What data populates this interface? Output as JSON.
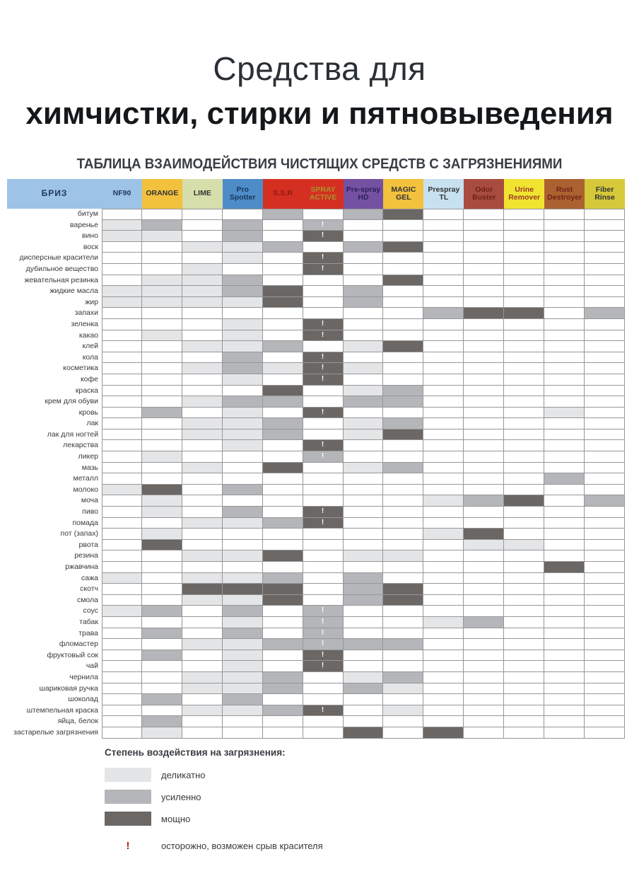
{
  "header": {
    "title_line1": "Средства для",
    "title_line2": "химчистки, стирки и пятновыведения",
    "subtitle": "ТАБЛИЦА ВЗАИМОДЕЙСТВИЯ ЧИСТЯЩИХ СРЕДСТВ С ЗАГРЯЗНЕНИЯМИ"
  },
  "table": {
    "corner": {
      "name": "БРИЗ",
      "bg": "#9DC3E6",
      "fg": "#1F3864"
    },
    "shade_colors": {
      "0": "#FFFFFF",
      "1": "#E4E5E7",
      "2": "#B4B6B9",
      "3": "#6A6765"
    },
    "warning_mark": "!",
    "products": [
      {
        "name": "NF90",
        "bg": "#9DC3E6",
        "fg": "#1F3864"
      },
      {
        "name": "ORANGE",
        "bg": "#F2C13D",
        "fg": "#333333"
      },
      {
        "name": "LIME",
        "bg": "#D6DEAC",
        "fg": "#333333"
      },
      {
        "name": "Pro Spotter",
        "bg": "#4E8CC8",
        "fg": "#17365D"
      },
      {
        "name": "S.S.R",
        "bg": "#D52F21",
        "fg": "#8A1A10"
      },
      {
        "name": "SPRAY ACTIVE",
        "bg": "#D52F21",
        "fg": "#A8922F"
      },
      {
        "name": "Pre-spray HD",
        "bg": "#7451A1",
        "fg": "#2B2159"
      },
      {
        "name": "MAGIC GEL",
        "bg": "#F2C13D",
        "fg": "#333333"
      },
      {
        "name": "Prespray TL",
        "bg": "#C8E1F1",
        "fg": "#333333"
      },
      {
        "name": "Odor Buster",
        "bg": "#A94C40",
        "fg": "#701F16"
      },
      {
        "name": "Urine Remover",
        "bg": "#F0E431",
        "fg": "#9C3A28"
      },
      {
        "name": "Rust Destroyer",
        "bg": "#AC6230",
        "fg": "#6E2318"
      },
      {
        "name": "Fiber Rinse",
        "bg": "#D5C93B",
        "fg": "#333333"
      }
    ],
    "rows": [
      {
        "label": "битум",
        "cells": [
          "0",
          "0",
          "0",
          "0",
          "2",
          "0",
          "2",
          "3",
          "0",
          "0",
          "0",
          "0",
          "0"
        ]
      },
      {
        "label": "варенье",
        "cells": [
          "1",
          "2",
          "0",
          "2",
          "0",
          "2!",
          "0",
          "0",
          "0",
          "0",
          "0",
          "0",
          "0"
        ]
      },
      {
        "label": "вино",
        "cells": [
          "1",
          "1",
          "0",
          "2",
          "0",
          "3!",
          "0",
          "0",
          "0",
          "0",
          "0",
          "0",
          "0"
        ]
      },
      {
        "label": "воск",
        "cells": [
          "0",
          "0",
          "1",
          "1",
          "2",
          "0",
          "2",
          "3",
          "0",
          "0",
          "0",
          "0",
          "0"
        ]
      },
      {
        "label": "дисперсные красители",
        "cells": [
          "0",
          "0",
          "0",
          "1",
          "0",
          "3!",
          "0",
          "0",
          "0",
          "0",
          "0",
          "0",
          "0"
        ]
      },
      {
        "label": "дубильное вещество",
        "cells": [
          "0",
          "0",
          "1",
          "0",
          "0",
          "3!",
          "0",
          "0",
          "0",
          "0",
          "0",
          "0",
          "0"
        ]
      },
      {
        "label": "жевательная резинка",
        "cells": [
          "0",
          "1",
          "1",
          "2",
          "0",
          "0",
          "0",
          "3",
          "0",
          "0",
          "0",
          "0",
          "0"
        ]
      },
      {
        "label": "жидкие масла",
        "cells": [
          "1",
          "1",
          "1",
          "2",
          "3",
          "0",
          "2",
          "0",
          "0",
          "0",
          "0",
          "0",
          "0"
        ]
      },
      {
        "label": "жир",
        "cells": [
          "1",
          "1",
          "1",
          "1",
          "3",
          "0",
          "2",
          "0",
          "0",
          "0",
          "0",
          "0",
          "0"
        ]
      },
      {
        "label": "запахи",
        "cells": [
          "0",
          "0",
          "0",
          "0",
          "0",
          "0",
          "0",
          "0",
          "2",
          "3",
          "3",
          "0",
          "2"
        ]
      },
      {
        "label": "зеленка",
        "cells": [
          "0",
          "0",
          "0",
          "1",
          "0",
          "3!",
          "0",
          "0",
          "0",
          "0",
          "0",
          "0",
          "0"
        ]
      },
      {
        "label": "какао",
        "cells": [
          "0",
          "1",
          "0",
          "1",
          "0",
          "3!",
          "0",
          "0",
          "0",
          "0",
          "0",
          "0",
          "0"
        ]
      },
      {
        "label": "клей",
        "cells": [
          "0",
          "0",
          "1",
          "1",
          "2",
          "0",
          "1",
          "3",
          "0",
          "0",
          "0",
          "0",
          "0"
        ]
      },
      {
        "label": "кола",
        "cells": [
          "0",
          "0",
          "0",
          "2",
          "0",
          "3!",
          "0",
          "0",
          "0",
          "0",
          "0",
          "0",
          "0"
        ]
      },
      {
        "label": "косметика",
        "cells": [
          "0",
          "0",
          "1",
          "2",
          "1",
          "3!",
          "1",
          "0",
          "0",
          "0",
          "0",
          "0",
          "0"
        ]
      },
      {
        "label": "кофе",
        "cells": [
          "0",
          "0",
          "0",
          "1",
          "0",
          "3!",
          "0",
          "0",
          "0",
          "0",
          "0",
          "0",
          "0"
        ]
      },
      {
        "label": "краска",
        "cells": [
          "0",
          "0",
          "0",
          "0",
          "3",
          "0",
          "1",
          "2",
          "0",
          "0",
          "0",
          "0",
          "0"
        ]
      },
      {
        "label": "крем для обуви",
        "cells": [
          "0",
          "0",
          "1",
          "2",
          "2",
          "0",
          "2",
          "2",
          "0",
          "0",
          "0",
          "0",
          "0"
        ]
      },
      {
        "label": "кровь",
        "cells": [
          "0",
          "2",
          "0",
          "1",
          "0",
          "3!",
          "0",
          "0",
          "0",
          "0",
          "0",
          "1",
          "0"
        ]
      },
      {
        "label": "лак",
        "cells": [
          "0",
          "0",
          "1",
          "1",
          "2",
          "0",
          "1",
          "2",
          "0",
          "0",
          "0",
          "0",
          "0"
        ]
      },
      {
        "label": "лак для ногтей",
        "cells": [
          "0",
          "0",
          "1",
          "1",
          "2",
          "0",
          "1",
          "3",
          "0",
          "0",
          "0",
          "0",
          "0"
        ]
      },
      {
        "label": "лекарства",
        "cells": [
          "0",
          "0",
          "0",
          "1",
          "0",
          "3!",
          "0",
          "0",
          "0",
          "0",
          "0",
          "0",
          "0"
        ]
      },
      {
        "label": "ликер",
        "cells": [
          "0",
          "1",
          "0",
          "0",
          "0",
          "2!",
          "0",
          "0",
          "0",
          "0",
          "0",
          "0",
          "0"
        ]
      },
      {
        "label": "мазь",
        "cells": [
          "0",
          "0",
          "1",
          "0",
          "3",
          "0",
          "1",
          "2",
          "0",
          "0",
          "0",
          "0",
          "0"
        ]
      },
      {
        "label": "металл",
        "cells": [
          "0",
          "0",
          "0",
          "0",
          "0",
          "0",
          "0",
          "0",
          "0",
          "0",
          "0",
          "2",
          "0"
        ]
      },
      {
        "label": "молоко",
        "cells": [
          "1",
          "3",
          "0",
          "2",
          "0",
          "0",
          "0",
          "0",
          "0",
          "0",
          "0",
          "0",
          "0"
        ]
      },
      {
        "label": "моча",
        "cells": [
          "0",
          "1",
          "0",
          "0",
          "0",
          "0",
          "0",
          "0",
          "1",
          "2",
          "3",
          "0",
          "2"
        ]
      },
      {
        "label": "пиво",
        "cells": [
          "0",
          "1",
          "0",
          "2",
          "0",
          "3!",
          "0",
          "0",
          "0",
          "0",
          "0",
          "0",
          "0"
        ]
      },
      {
        "label": "помада",
        "cells": [
          "0",
          "0",
          "1",
          "1",
          "2",
          "3!",
          "0",
          "0",
          "0",
          "0",
          "0",
          "0",
          "0"
        ]
      },
      {
        "label": "пот (запах)",
        "cells": [
          "0",
          "1",
          "0",
          "0",
          "0",
          "0",
          "0",
          "0",
          "1",
          "3",
          "0",
          "0",
          "0"
        ]
      },
      {
        "label": "рвота",
        "cells": [
          "0",
          "3",
          "0",
          "0",
          "0",
          "0",
          "0",
          "0",
          "0",
          "1",
          "1",
          "0",
          "0"
        ]
      },
      {
        "label": "резина",
        "cells": [
          "0",
          "0",
          "1",
          "1",
          "3",
          "0",
          "1",
          "1",
          "0",
          "0",
          "0",
          "0",
          "0"
        ]
      },
      {
        "label": "ржавчина",
        "cells": [
          "0",
          "0",
          "0",
          "0",
          "0",
          "0",
          "0",
          "0",
          "0",
          "0",
          "0",
          "3",
          "0"
        ]
      },
      {
        "label": "сажа",
        "cells": [
          "1",
          "0",
          "1",
          "1",
          "2",
          "0",
          "2",
          "0",
          "0",
          "0",
          "0",
          "0",
          "0"
        ]
      },
      {
        "label": "скотч",
        "cells": [
          "0",
          "0",
          "3",
          "3",
          "3",
          "0",
          "2",
          "3",
          "0",
          "0",
          "0",
          "0",
          "0"
        ]
      },
      {
        "label": "смола",
        "cells": [
          "0",
          "0",
          "1",
          "1",
          "3",
          "0",
          "2",
          "3",
          "0",
          "0",
          "0",
          "0",
          "0"
        ]
      },
      {
        "label": "соус",
        "cells": [
          "1",
          "2",
          "0",
          "2",
          "0",
          "2!",
          "0",
          "0",
          "0",
          "0",
          "0",
          "0",
          "0"
        ]
      },
      {
        "label": "табак",
        "cells": [
          "0",
          "0",
          "0",
          "1",
          "0",
          "2!",
          "0",
          "0",
          "1",
          "2",
          "0",
          "0",
          "0"
        ]
      },
      {
        "label": "трава",
        "cells": [
          "0",
          "2",
          "0",
          "2",
          "0",
          "2!",
          "0",
          "0",
          "0",
          "0",
          "0",
          "0",
          "0"
        ]
      },
      {
        "label": "фломастер",
        "cells": [
          "0",
          "0",
          "1",
          "1",
          "2",
          "2!",
          "2",
          "2",
          "0",
          "0",
          "0",
          "0",
          "0"
        ]
      },
      {
        "label": "фруктовый сок",
        "cells": [
          "0",
          "2",
          "0",
          "1",
          "0",
          "3!",
          "0",
          "0",
          "0",
          "0",
          "0",
          "0",
          "0"
        ]
      },
      {
        "label": "чай",
        "cells": [
          "0",
          "0",
          "0",
          "1",
          "0",
          "3!",
          "0",
          "0",
          "0",
          "0",
          "0",
          "0",
          "0"
        ]
      },
      {
        "label": "чернила",
        "cells": [
          "0",
          "0",
          "1",
          "1",
          "2",
          "0",
          "1",
          "2",
          "0",
          "0",
          "0",
          "0",
          "0"
        ]
      },
      {
        "label": "шариковая ручка",
        "cells": [
          "0",
          "0",
          "1",
          "1",
          "2",
          "0",
          "2",
          "1",
          "0",
          "0",
          "0",
          "0",
          "0"
        ]
      },
      {
        "label": "шоколад",
        "cells": [
          "0",
          "2",
          "0",
          "2",
          "0",
          "0",
          "0",
          "0",
          "0",
          "0",
          "0",
          "0",
          "0"
        ]
      },
      {
        "label": "штемпельная краска",
        "cells": [
          "0",
          "0",
          "1",
          "1",
          "2",
          "3!",
          "0",
          "1",
          "0",
          "0",
          "0",
          "0",
          "0"
        ]
      },
      {
        "label": "яйца, белок",
        "cells": [
          "0",
          "2",
          "0",
          "0",
          "0",
          "0",
          "0",
          "0",
          "0",
          "0",
          "0",
          "0",
          "0"
        ]
      },
      {
        "label": "застарелые загрязнения",
        "cells": [
          "0",
          "1",
          "0",
          "0",
          "0",
          "0",
          "3",
          "0",
          "3",
          "0",
          "0",
          "0",
          "0"
        ]
      }
    ]
  },
  "legend": {
    "title": "Степень воздействия на загрязнения:",
    "items": [
      {
        "label": "деликатно",
        "color": "#E4E5E7"
      },
      {
        "label": "усиленно",
        "color": "#B4B6B9"
      },
      {
        "label": "мощно",
        "color": "#6A6765"
      }
    ],
    "warning": {
      "symbol": "!",
      "color": "#B2261E",
      "label": "осторожно, возможен срыв красителя"
    }
  }
}
